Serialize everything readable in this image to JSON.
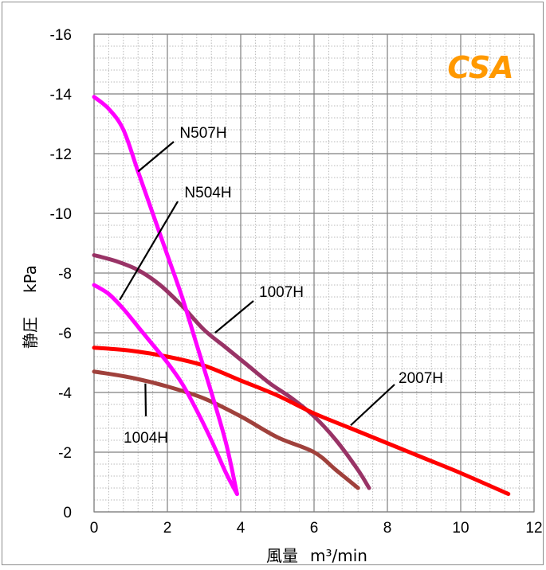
{
  "chart_data": {
    "type": "line",
    "title": "",
    "brand_label": "CSA",
    "brand_color": "#ff9900",
    "xlabel": "風量",
    "xunit": "m³/min",
    "ylabel": "静圧",
    "yunit": "kPa",
    "xlim": [
      0,
      12
    ],
    "ylim": [
      0,
      -16
    ],
    "x_ticks": [
      0,
      2,
      4,
      6,
      8,
      10,
      12
    ],
    "y_ticks": [
      0,
      -2,
      -4,
      -6,
      -8,
      -10,
      -12,
      -14,
      -16
    ],
    "x_tick_labels": [
      "0",
      "2",
      "4",
      "6",
      "8",
      "10",
      "12"
    ],
    "y_tick_labels": [
      "0",
      "-2",
      "-4",
      "-6",
      "-8",
      "-10",
      "-12",
      "-14",
      "-16"
    ],
    "grid": true,
    "series": [
      {
        "name": "N507H",
        "color": "#ff00ff",
        "points": [
          [
            0,
            -13.9
          ],
          [
            0.4,
            -13.5
          ],
          [
            0.8,
            -12.8
          ],
          [
            1.2,
            -11.4
          ],
          [
            1.6,
            -10.0
          ],
          [
            2.0,
            -8.6
          ],
          [
            2.4,
            -7.2
          ],
          [
            2.8,
            -5.6
          ],
          [
            3.2,
            -4.0
          ],
          [
            3.6,
            -2.3
          ],
          [
            3.9,
            -0.6
          ]
        ]
      },
      {
        "name": "N504H",
        "color": "#ff00ff",
        "points": [
          [
            0,
            -7.6
          ],
          [
            0.4,
            -7.3
          ],
          [
            0.8,
            -6.8
          ],
          [
            1.2,
            -6.2
          ],
          [
            1.6,
            -5.6
          ],
          [
            2.0,
            -5.0
          ],
          [
            2.4,
            -4.3
          ],
          [
            2.8,
            -3.4
          ],
          [
            3.2,
            -2.4
          ],
          [
            3.6,
            -1.3
          ],
          [
            3.9,
            -0.6
          ]
        ]
      },
      {
        "name": "1007H",
        "color": "#993366",
        "points": [
          [
            0,
            -8.6
          ],
          [
            0.6,
            -8.4
          ],
          [
            1.2,
            -8.1
          ],
          [
            1.8,
            -7.6
          ],
          [
            2.4,
            -6.9
          ],
          [
            3.0,
            -6.1
          ],
          [
            3.6,
            -5.5
          ],
          [
            4.2,
            -4.9
          ],
          [
            4.8,
            -4.3
          ],
          [
            5.4,
            -3.8
          ],
          [
            6.0,
            -3.2
          ],
          [
            6.6,
            -2.4
          ],
          [
            7.2,
            -1.4
          ],
          [
            7.5,
            -0.8
          ]
        ]
      },
      {
        "name": "2007H",
        "color": "#ff0000",
        "points": [
          [
            0,
            -5.5
          ],
          [
            1,
            -5.4
          ],
          [
            2,
            -5.2
          ],
          [
            3,
            -4.9
          ],
          [
            4,
            -4.4
          ],
          [
            5,
            -3.9
          ],
          [
            6,
            -3.3
          ],
          [
            7,
            -2.8
          ],
          [
            8,
            -2.3
          ],
          [
            9,
            -1.8
          ],
          [
            10,
            -1.3
          ],
          [
            11.3,
            -0.6
          ]
        ]
      },
      {
        "name": "1004H",
        "color": "#a0413c",
        "points": [
          [
            0,
            -4.7
          ],
          [
            1,
            -4.5
          ],
          [
            2,
            -4.2
          ],
          [
            3,
            -3.8
          ],
          [
            4,
            -3.2
          ],
          [
            5,
            -2.5
          ],
          [
            6,
            -2.0
          ],
          [
            6.6,
            -1.4
          ],
          [
            7.2,
            -0.8
          ]
        ]
      }
    ],
    "labels": [
      {
        "text": "N507H",
        "series": "N507H",
        "at": [
          1.2,
          -11.4
        ]
      },
      {
        "text": "N504H",
        "series": "N504H",
        "at": [
          0.7,
          -7.1
        ]
      },
      {
        "text": "1007H",
        "series": "1007H",
        "at": [
          3.3,
          -6.0
        ]
      },
      {
        "text": "2007H",
        "series": "2007H",
        "at": [
          7.0,
          -2.9
        ]
      },
      {
        "text": "1004H",
        "series": "1004H",
        "at": [
          1.4,
          -4.3
        ]
      }
    ]
  }
}
